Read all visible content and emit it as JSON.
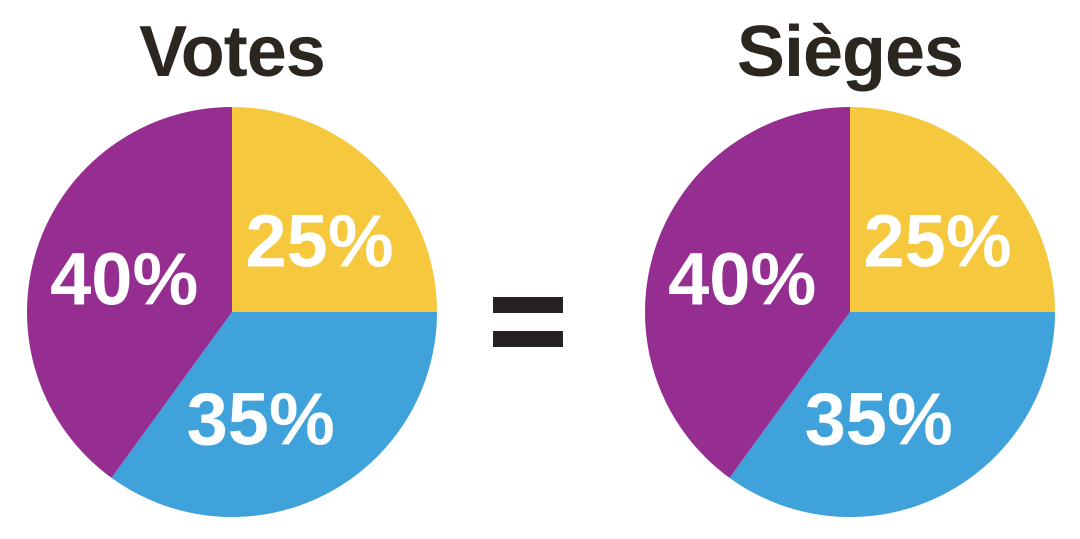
{
  "styles": {
    "title_color": "#2b2620",
    "equals_color": "#262221",
    "background": "#ffffff"
  },
  "equals": {
    "symbol": "="
  },
  "chart_data": [
    {
      "type": "pie",
      "title": "Votes",
      "legend": "none",
      "start_angle_deg_from_top": 0,
      "direction": "clockwise",
      "labels_inside": true,
      "label_color": "#ffffff",
      "slices": [
        {
          "name": "yellow",
          "label": "25%",
          "value": 25,
          "color": "#f6c83e",
          "label_angle": 51,
          "label_radius": 0.55
        },
        {
          "name": "blue",
          "label": "35%",
          "value": 35,
          "color": "#40a2db",
          "label_angle": 165,
          "label_radius": 0.54
        },
        {
          "name": "purple",
          "label": "40%",
          "value": 40,
          "color": "#962e92",
          "label_angle": 287,
          "label_radius": 0.55
        }
      ]
    },
    {
      "type": "pie",
      "title": "Sièges",
      "legend": "none",
      "start_angle_deg_from_top": 0,
      "direction": "clockwise",
      "labels_inside": true,
      "label_color": "#ffffff",
      "slices": [
        {
          "name": "yellow",
          "label": "25%",
          "value": 25,
          "color": "#f6c83e",
          "label_angle": 51,
          "label_radius": 0.55
        },
        {
          "name": "blue",
          "label": "35%",
          "value": 35,
          "color": "#40a2db",
          "label_angle": 165,
          "label_radius": 0.54
        },
        {
          "name": "purple",
          "label": "40%",
          "value": 40,
          "color": "#962e92",
          "label_angle": 287,
          "label_radius": 0.55
        }
      ]
    }
  ]
}
